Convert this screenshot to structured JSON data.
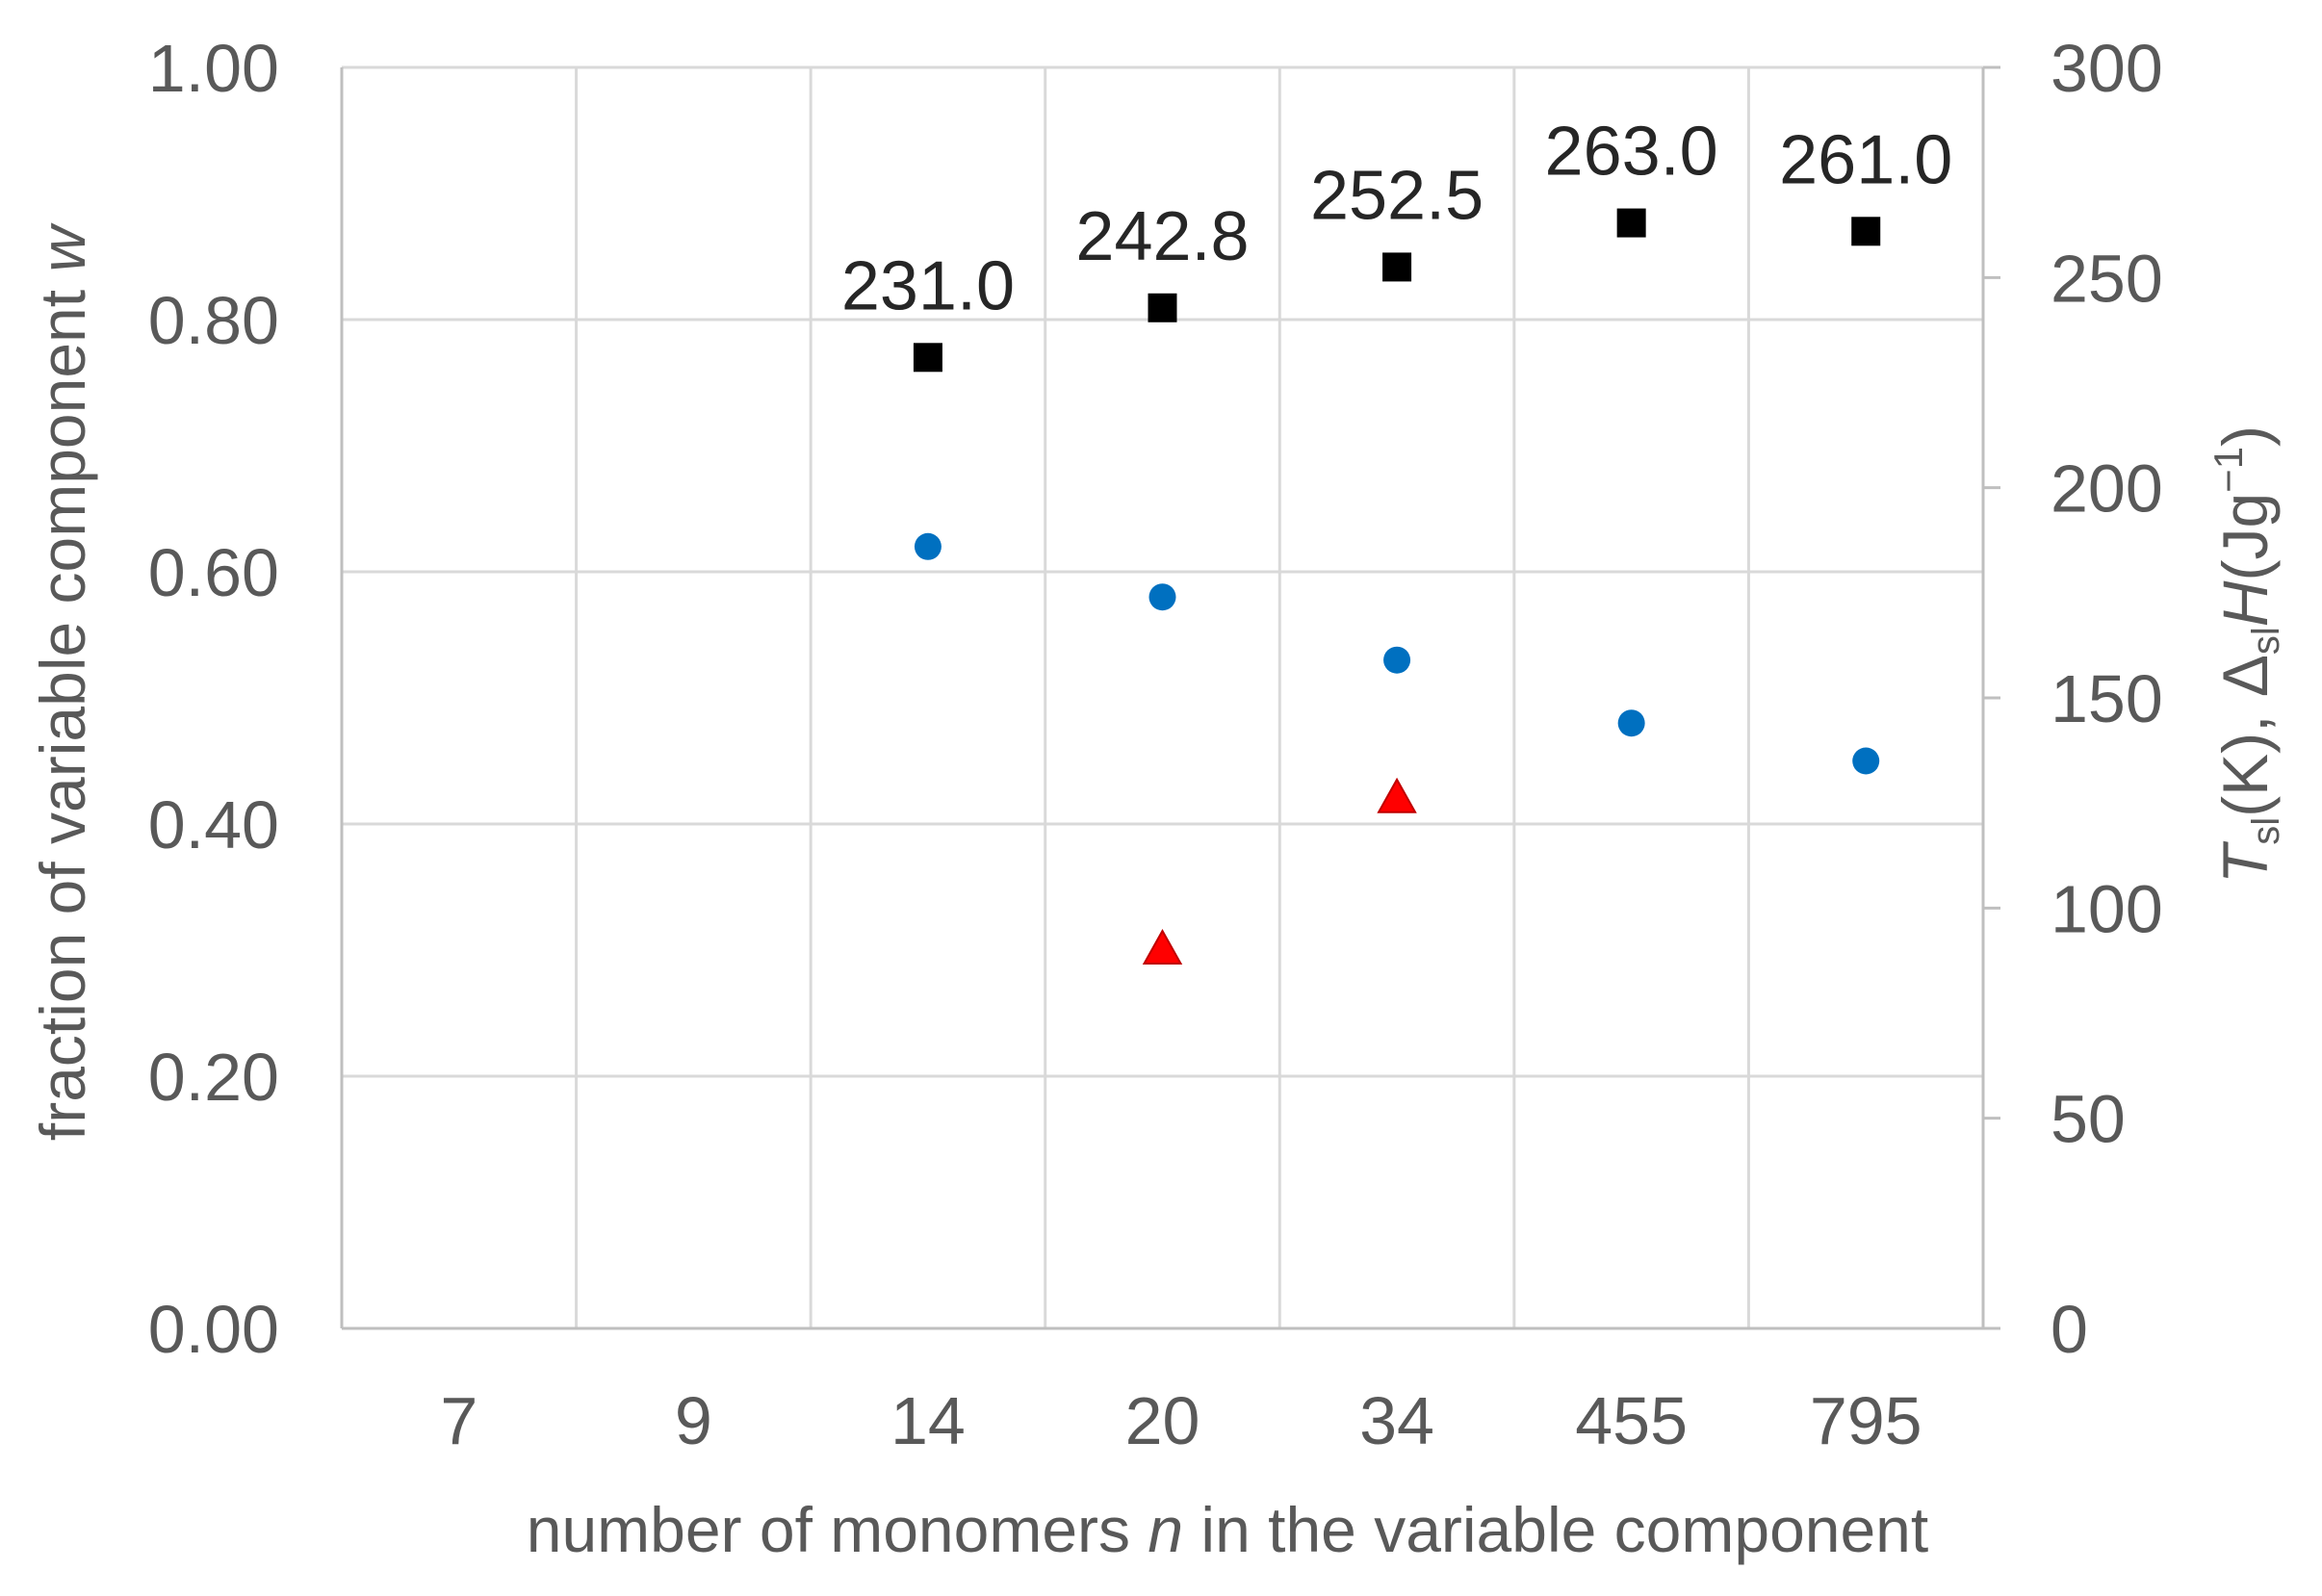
{
  "chart_data": {
    "type": "scatter",
    "categories": [
      "7",
      "9",
      "14",
      "20",
      "34",
      "455",
      "795"
    ],
    "xlabel": {
      "pre": "number of monomers ",
      "italic": "n",
      "post": " in the variable component"
    },
    "ylabel_left": {
      "text": "fraction of variable component ",
      "italic": "w"
    },
    "ylabel_right": {
      "t": "T",
      "t_sub": "sl",
      "mid": "(K), Δ",
      "h_sub": "sl",
      "h": "H",
      "unit": "(Jg",
      "sup": "−1",
      "close": ")"
    },
    "yleft_ticks": [
      "0.00",
      "0.20",
      "0.40",
      "0.60",
      "0.80",
      "1.00"
    ],
    "yleft_lim": [
      0,
      1
    ],
    "yright_ticks": [
      "0",
      "50",
      "100",
      "150",
      "200",
      "250",
      "300"
    ],
    "yright_lim": [
      0,
      300
    ],
    "grid": true,
    "series": [
      {
        "marker": "square",
        "color": "#000000",
        "axis": "right",
        "points": [
          {
            "category": "14",
            "value": 231.0
          },
          {
            "category": "20",
            "value": 242.8
          },
          {
            "category": "34",
            "value": 252.5
          },
          {
            "category": "455",
            "value": 263.0
          },
          {
            "category": "795",
            "value": 261.0
          }
        ],
        "labels": [
          "231.0",
          "242.8",
          "252.5",
          "263.0",
          "261.0"
        ]
      },
      {
        "marker": "circle",
        "color": "#0070c0",
        "axis": "left",
        "points": [
          {
            "category": "14",
            "value": 0.62
          },
          {
            "category": "20",
            "value": 0.58
          },
          {
            "category": "34",
            "value": 0.53
          },
          {
            "category": "455",
            "value": 0.48
          },
          {
            "category": "795",
            "value": 0.45
          }
        ]
      },
      {
        "marker": "triangle",
        "color": "#ff0000",
        "axis": "right",
        "points": [
          {
            "category": "20",
            "value": 90
          },
          {
            "category": "34",
            "value": 126
          }
        ]
      }
    ]
  }
}
